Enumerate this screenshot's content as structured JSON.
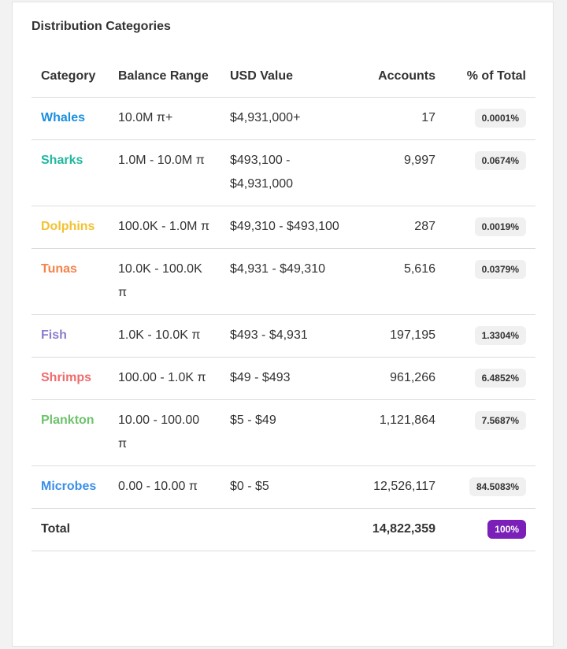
{
  "panel": {
    "title": "Distribution Categories"
  },
  "table": {
    "headers": {
      "category": "Category",
      "balance_range": "Balance Range",
      "usd_value": "USD Value",
      "accounts": "Accounts",
      "pct_total": "% of Total"
    },
    "rows": [
      {
        "category": "Whales",
        "color": "#1a8fe0",
        "balance": "10.0M π+",
        "usd": "$4,931,000+",
        "accounts": "17",
        "pct": "0.0001%"
      },
      {
        "category": "Sharks",
        "color": "#22b7a0",
        "balance": "1.0M - 10.0M π",
        "usd": "$493,100 - $4,931,000",
        "accounts": "9,997",
        "pct": "0.0674%"
      },
      {
        "category": "Dolphins",
        "color": "#f3c132",
        "balance": "100.0K - 1.0M π",
        "usd": "$49,310 - $493,100",
        "accounts": "287",
        "pct": "0.0019%"
      },
      {
        "category": "Tunas",
        "color": "#f5834a",
        "balance": "10.0K - 100.0K π",
        "usd": "$4,931 - $49,310",
        "accounts": "5,616",
        "pct": "0.0379%"
      },
      {
        "category": "Fish",
        "color": "#8b7ccf",
        "balance": "1.0K - 10.0K π",
        "usd": "$493 - $4,931",
        "accounts": "197,195",
        "pct": "1.3304%"
      },
      {
        "category": "Shrimps",
        "color": "#ef6b6b",
        "balance": "100.00 - 1.0K π",
        "usd": "$49 - $493",
        "accounts": "961,266",
        "pct": "6.4852%"
      },
      {
        "category": "Plankton",
        "color": "#6cc36b",
        "balance": "10.00 - 100.00 π",
        "usd": "$5 - $49",
        "accounts": "1,121,864",
        "pct": "7.5687%"
      },
      {
        "category": "Microbes",
        "color": "#3b8fe8",
        "balance": "0.00 - 10.00 π",
        "usd": "$0 - $5",
        "accounts": "12,526,117",
        "pct": "84.5083%"
      }
    ],
    "total": {
      "label": "Total",
      "accounts": "14,822,359",
      "pct": "100%",
      "badge_color": "#7a1fb8"
    }
  }
}
